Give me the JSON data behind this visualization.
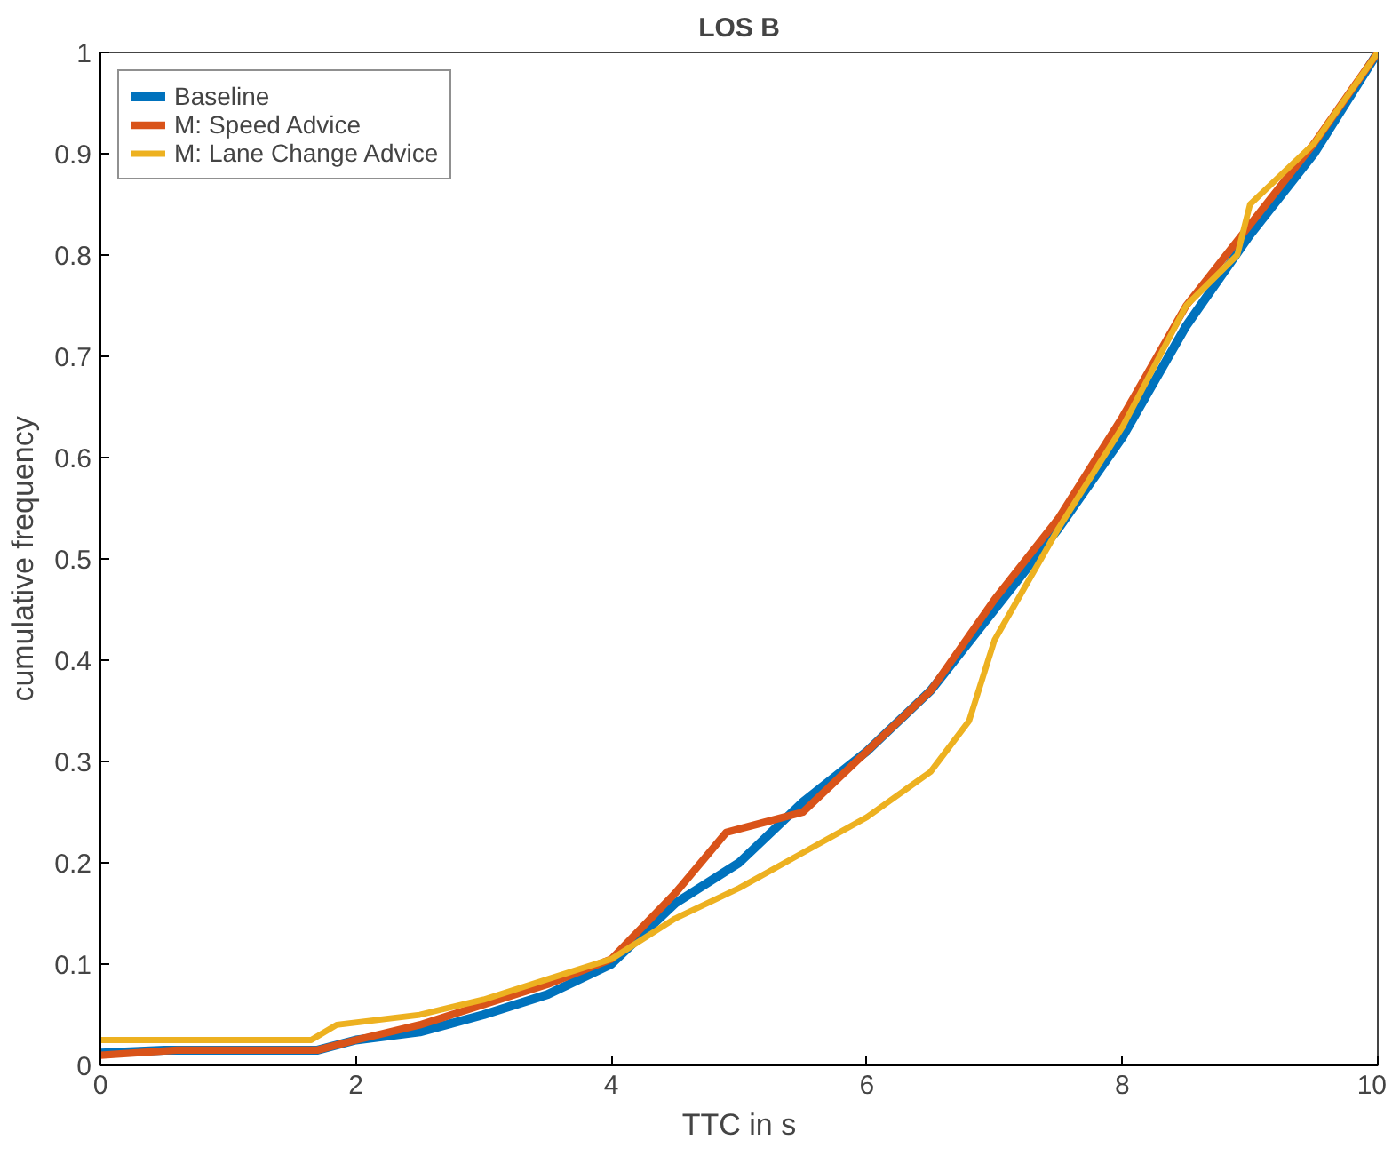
{
  "chart_data": {
    "type": "line",
    "title": "LOS B",
    "xlabel": "TTC in s",
    "ylabel": "cumulative frequency",
    "xlim": [
      0,
      10
    ],
    "ylim": [
      0,
      1
    ],
    "xticks": [
      0,
      2,
      4,
      6,
      8,
      10
    ],
    "yticks": [
      0,
      0.1,
      0.2,
      0.3,
      0.4,
      0.5,
      0.6,
      0.7,
      0.8,
      0.9,
      1
    ],
    "legend": "top left",
    "grid": false,
    "line_style": "solid",
    "series": [
      {
        "name": "Baseline",
        "color": "#0072bd",
        "x": [
          0,
          0.5,
          1.7,
          2,
          2.5,
          3,
          3.5,
          4,
          4.5,
          5,
          5.5,
          6,
          6.5,
          7,
          7.5,
          8,
          8.5,
          9,
          9.5,
          10
        ],
        "values": [
          0.012,
          0.015,
          0.015,
          0.025,
          0.033,
          0.05,
          0.07,
          0.1,
          0.16,
          0.2,
          0.26,
          0.31,
          0.37,
          0.45,
          0.53,
          0.62,
          0.73,
          0.82,
          0.9,
          1.0
        ]
      },
      {
        "name": "M: Speed Advice",
        "color": "#d95319",
        "x": [
          0,
          0.6,
          1.7,
          2,
          2.5,
          3,
          3.5,
          4,
          4.5,
          4.9,
          5.2,
          5.5,
          6,
          6.5,
          7,
          7.5,
          8,
          8.5,
          9,
          9.5,
          10
        ],
        "values": [
          0.01,
          0.015,
          0.015,
          0.025,
          0.04,
          0.06,
          0.08,
          0.105,
          0.17,
          0.23,
          0.24,
          0.25,
          0.31,
          0.37,
          0.46,
          0.54,
          0.64,
          0.75,
          0.83,
          0.91,
          1.0
        ]
      },
      {
        "name": "M: Lane Change Advice",
        "color": "#edb120",
        "x": [
          0,
          1.65,
          1.85,
          2.5,
          3,
          3.5,
          4,
          4.5,
          5,
          5.5,
          6,
          6.5,
          6.8,
          7,
          7.5,
          8,
          8.5,
          8.9,
          9,
          9.5,
          10
        ],
        "values": [
          0.025,
          0.025,
          0.04,
          0.05,
          0.065,
          0.085,
          0.105,
          0.145,
          0.175,
          0.21,
          0.245,
          0.29,
          0.34,
          0.42,
          0.53,
          0.63,
          0.75,
          0.8,
          0.85,
          0.91,
          1.0
        ]
      }
    ]
  }
}
